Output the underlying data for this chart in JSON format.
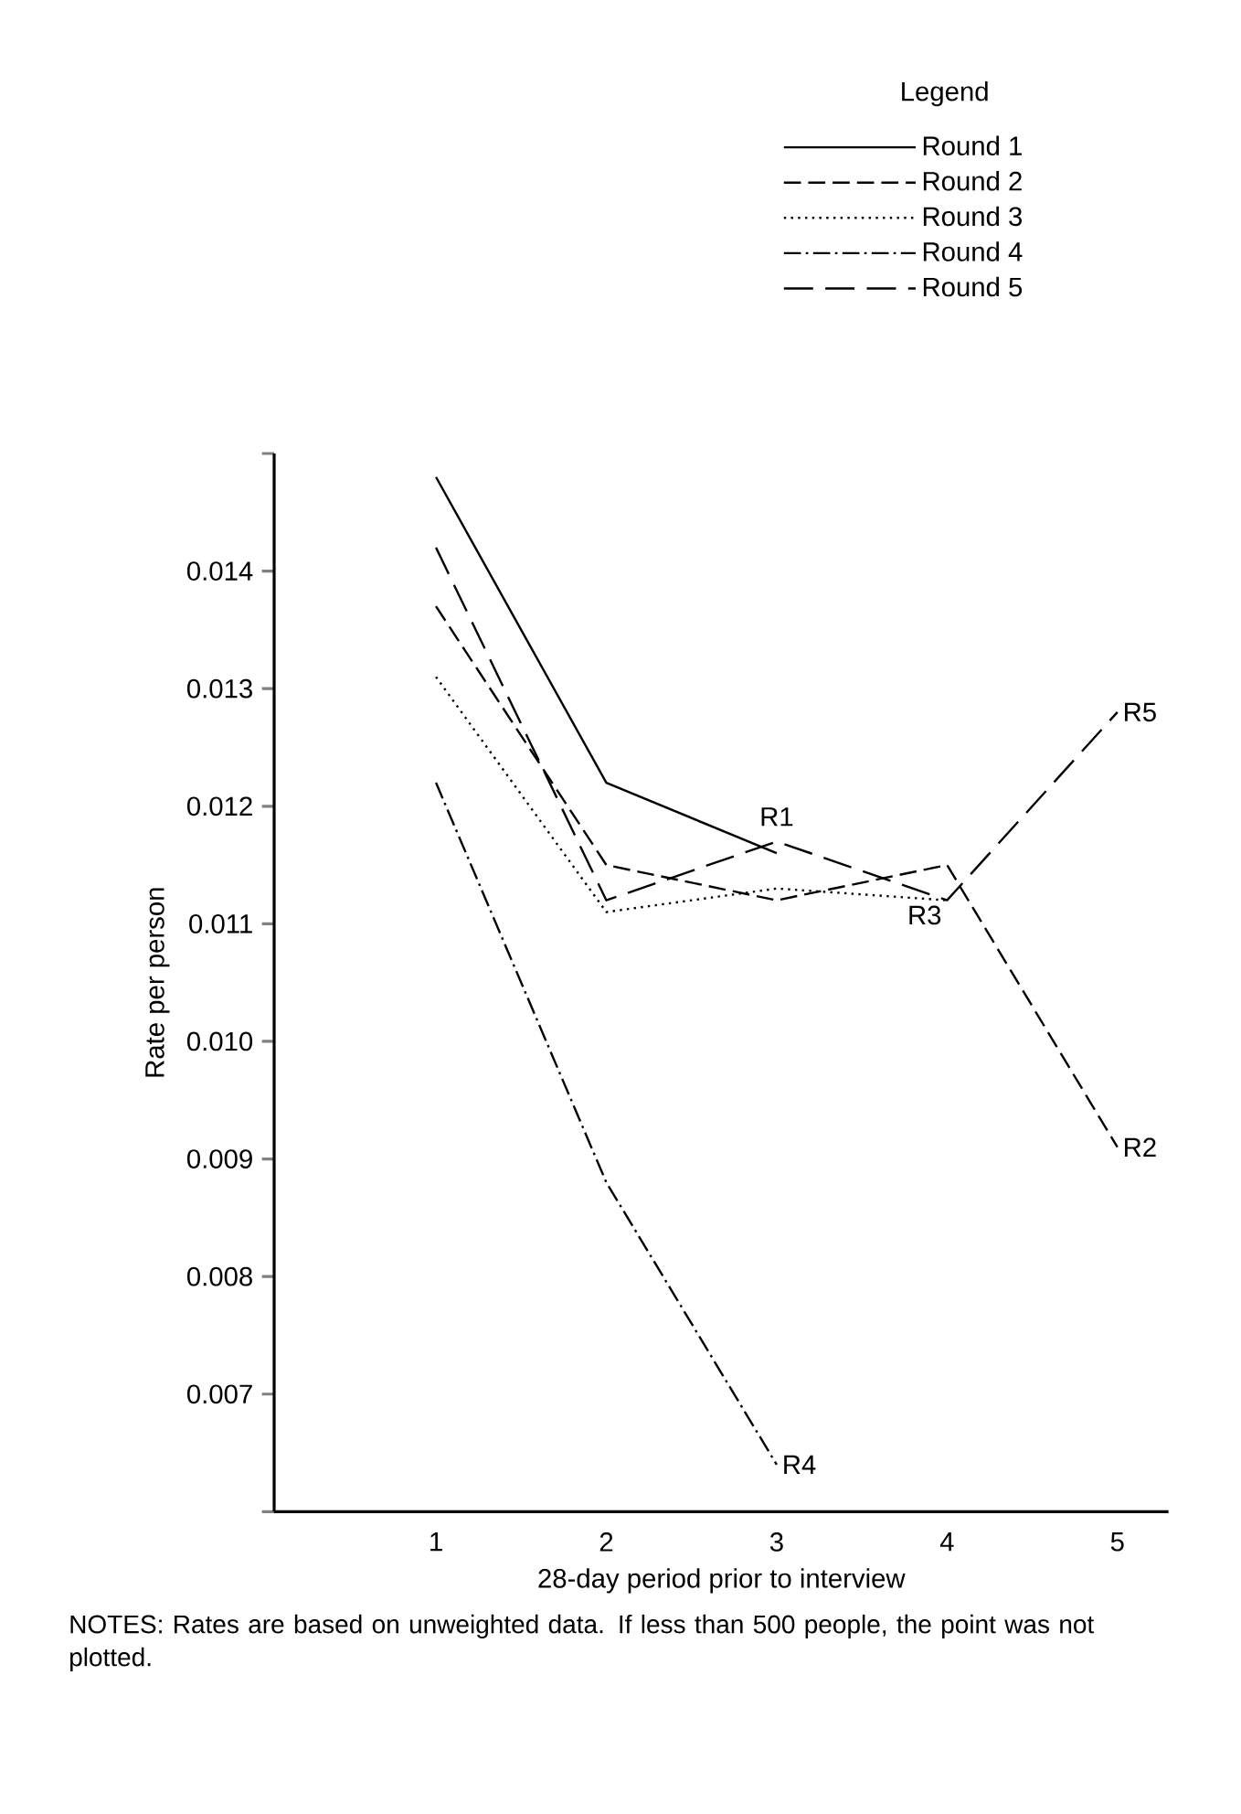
{
  "chart_data": {
    "type": "line",
    "xlabel": "28-day period prior to interview",
    "ylabel": "Rate per person",
    "legend_title": "Legend",
    "x": [
      1,
      2,
      3,
      4,
      5
    ],
    "series": [
      {
        "name": "Round 1",
        "color": "#000000",
        "line_style": "solid",
        "values": [
          0.0148,
          0.0122,
          0.0116,
          null,
          null
        ]
      },
      {
        "name": "Round 2",
        "color": "#000000",
        "line_style": "dashed",
        "values": [
          0.0137,
          0.0115,
          0.0112,
          0.0115,
          0.0091
        ]
      },
      {
        "name": "Round 3",
        "color": "#000000",
        "line_style": "dotted",
        "values": [
          0.0131,
          0.0111,
          0.0113,
          0.0112,
          null
        ]
      },
      {
        "name": "Round 4",
        "color": "#000000",
        "line_style": "dashdot",
        "values": [
          0.0122,
          0.0088,
          0.0064,
          null,
          null
        ]
      },
      {
        "name": "Round 5",
        "color": "#000000",
        "line_style": "longdashed",
        "values": [
          0.0142,
          0.0112,
          0.0117,
          0.0112,
          0.0128
        ]
      }
    ],
    "xlim": [
      0.05,
      5.3
    ],
    "ylim": [
      0.006,
      0.015
    ],
    "xticks": [
      1,
      2,
      3,
      4,
      5
    ],
    "yticks": [
      {
        "value": 0.006,
        "label": null
      },
      0.007,
      0.008,
      0.009,
      {
        "value": 0.01,
        "label": "0.010"
      },
      0.011,
      0.012,
      0.013,
      0.014,
      {
        "value": 0.015,
        "label": null
      }
    ],
    "legend": "top right",
    "grid": false,
    "marker": "none",
    "annotations": [
      {
        "text": "R1",
        "x": 3,
        "y": 0.0116
      },
      {
        "text": "R2",
        "x": 5,
        "y": 0.0091
      },
      {
        "text": "R3",
        "x": 4,
        "y": 0.0112
      },
      {
        "text": "R4",
        "x": 3,
        "y": 0.0064
      },
      {
        "text": "R5",
        "x": 5,
        "y": 0.0128
      },
      "NOTES: Rates are based on unweighted data. If less than 500 people, the point was not plotted."
    ]
  }
}
